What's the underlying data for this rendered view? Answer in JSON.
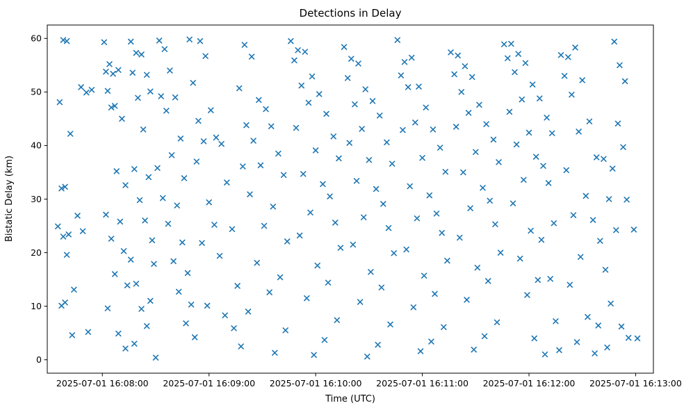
{
  "chart_data": {
    "type": "scatter",
    "marker": "x",
    "marker_color": "#1f77b4",
    "title": "Detections in Delay",
    "xlabel": "Time (UTC)",
    "ylabel": "Bistatic Delay (km)",
    "x_tick_labels": [
      "2025-07-01 16:08:00",
      "2025-07-01 16:09:00",
      "2025-07-01 16:10:00",
      "2025-07-01 16:11:00",
      "2025-07-01 16:12:00",
      "2025-07-01 16:13:00"
    ],
    "x_ticks_seconds": [
      0,
      60,
      120,
      180,
      240,
      300
    ],
    "xlim_seconds": [
      -31,
      310
    ],
    "ylim": [
      -2.5,
      62.5
    ],
    "y_ticks": [
      0,
      10,
      20,
      30,
      40,
      50,
      60
    ],
    "grid": false,
    "legend": "none",
    "points": [
      [
        -22,
        59.7
      ],
      [
        -20,
        59.5
      ],
      [
        -24,
        48.1
      ],
      [
        -18,
        42.2
      ],
      [
        -21,
        32.3
      ],
      [
        -23,
        32.0
      ],
      [
        -25,
        24.9
      ],
      [
        -19,
        23.4
      ],
      [
        -22,
        23.0
      ],
      [
        -20,
        19.6
      ],
      [
        -16,
        13.1
      ],
      [
        -21,
        10.7
      ],
      [
        -23,
        10.1
      ],
      [
        -17,
        4.6
      ],
      [
        -12,
        50.9
      ],
      [
        -9,
        49.9
      ],
      [
        -6,
        50.4
      ],
      [
        -14,
        26.9
      ],
      [
        -11,
        24.0
      ],
      [
        -8,
        5.2
      ],
      [
        1,
        59.3
      ],
      [
        4,
        55.2
      ],
      [
        2,
        53.8
      ],
      [
        6,
        53.4
      ],
      [
        9,
        54.1
      ],
      [
        3,
        50.2
      ],
      [
        7,
        47.4
      ],
      [
        5,
        47.1
      ],
      [
        11,
        45.0
      ],
      [
        8,
        35.2
      ],
      [
        13,
        32.6
      ],
      [
        2,
        27.1
      ],
      [
        10,
        25.8
      ],
      [
        5,
        22.6
      ],
      [
        12,
        20.3
      ],
      [
        7,
        16.0
      ],
      [
        14,
        13.9
      ],
      [
        3,
        9.6
      ],
      [
        9,
        4.9
      ],
      [
        13,
        2.1
      ],
      [
        16,
        59.4
      ],
      [
        19,
        57.3
      ],
      [
        22,
        57.0
      ],
      [
        17,
        53.6
      ],
      [
        25,
        53.2
      ],
      [
        20,
        48.9
      ],
      [
        27,
        50.1
      ],
      [
        23,
        43.0
      ],
      [
        18,
        35.6
      ],
      [
        26,
        34.1
      ],
      [
        21,
        29.8
      ],
      [
        24,
        26.0
      ],
      [
        28,
        22.3
      ],
      [
        16,
        18.7
      ],
      [
        29,
        17.9
      ],
      [
        19,
        14.2
      ],
      [
        27,
        11.0
      ],
      [
        22,
        9.5
      ],
      [
        25,
        6.3
      ],
      [
        18,
        3.0
      ],
      [
        30,
        0.4
      ],
      [
        32,
        59.6
      ],
      [
        35,
        58.0
      ],
      [
        38,
        54.0
      ],
      [
        33,
        49.2
      ],
      [
        41,
        49.0
      ],
      [
        36,
        46.5
      ],
      [
        44,
        41.3
      ],
      [
        39,
        38.2
      ],
      [
        31,
        35.8
      ],
      [
        46,
        33.9
      ],
      [
        34,
        30.2
      ],
      [
        42,
        28.8
      ],
      [
        37,
        25.4
      ],
      [
        45,
        21.9
      ],
      [
        40,
        18.4
      ],
      [
        48,
        16.2
      ],
      [
        43,
        12.7
      ],
      [
        50,
        10.3
      ],
      [
        47,
        6.8
      ],
      [
        52,
        4.2
      ],
      [
        49,
        59.8
      ],
      [
        55,
        59.5
      ],
      [
        58,
        56.7
      ],
      [
        51,
        51.7
      ],
      [
        61,
        46.6
      ],
      [
        54,
        44.6
      ],
      [
        64,
        41.5
      ],
      [
        57,
        40.8
      ],
      [
        67,
        40.3
      ],
      [
        53,
        37.0
      ],
      [
        70,
        33.1
      ],
      [
        60,
        29.4
      ],
      [
        63,
        25.2
      ],
      [
        73,
        24.4
      ],
      [
        56,
        21.8
      ],
      [
        66,
        19.4
      ],
      [
        76,
        13.8
      ],
      [
        59,
        10.1
      ],
      [
        69,
        8.3
      ],
      [
        74,
        5.9
      ],
      [
        78,
        2.5
      ],
      [
        80,
        58.8
      ],
      [
        84,
        56.6
      ],
      [
        77,
        50.7
      ],
      [
        88,
        48.5
      ],
      [
        92,
        46.8
      ],
      [
        81,
        43.8
      ],
      [
        95,
        43.6
      ],
      [
        85,
        40.9
      ],
      [
        99,
        38.5
      ],
      [
        79,
        36.1
      ],
      [
        89,
        36.3
      ],
      [
        102,
        34.5
      ],
      [
        83,
        30.9
      ],
      [
        96,
        28.6
      ],
      [
        91,
        25.0
      ],
      [
        104,
        22.1
      ],
      [
        87,
        18.1
      ],
      [
        100,
        15.4
      ],
      [
        94,
        12.6
      ],
      [
        82,
        9.0
      ],
      [
        103,
        5.5
      ],
      [
        97,
        1.3
      ],
      [
        106,
        59.5
      ],
      [
        110,
        57.8
      ],
      [
        114,
        57.5
      ],
      [
        108,
        55.9
      ],
      [
        118,
        52.9
      ],
      [
        112,
        51.2
      ],
      [
        122,
        49.6
      ],
      [
        116,
        48.0
      ],
      [
        126,
        45.9
      ],
      [
        109,
        43.3
      ],
      [
        130,
        41.7
      ],
      [
        120,
        39.1
      ],
      [
        133,
        37.6
      ],
      [
        113,
        34.7
      ],
      [
        124,
        32.8
      ],
      [
        128,
        30.5
      ],
      [
        117,
        27.5
      ],
      [
        131,
        25.6
      ],
      [
        111,
        23.2
      ],
      [
        134,
        20.9
      ],
      [
        121,
        17.6
      ],
      [
        127,
        14.4
      ],
      [
        115,
        11.5
      ],
      [
        132,
        7.4
      ],
      [
        125,
        3.7
      ],
      [
        119,
        0.9
      ],
      [
        136,
        58.4
      ],
      [
        140,
        56.2
      ],
      [
        144,
        55.3
      ],
      [
        138,
        52.6
      ],
      [
        148,
        50.5
      ],
      [
        152,
        48.3
      ],
      [
        142,
        47.7
      ],
      [
        156,
        45.6
      ],
      [
        146,
        43.1
      ],
      [
        160,
        40.6
      ],
      [
        139,
        40.5
      ],
      [
        150,
        37.3
      ],
      [
        163,
        36.6
      ],
      [
        143,
        33.4
      ],
      [
        154,
        31.9
      ],
      [
        158,
        29.1
      ],
      [
        147,
        26.6
      ],
      [
        161,
        24.6
      ],
      [
        141,
        21.5
      ],
      [
        164,
        19.9
      ],
      [
        151,
        16.4
      ],
      [
        157,
        13.5
      ],
      [
        145,
        10.8
      ],
      [
        162,
        6.6
      ],
      [
        155,
        2.8
      ],
      [
        149,
        0.6
      ],
      [
        166,
        59.7
      ],
      [
        170,
        55.6
      ],
      [
        174,
        56.4
      ],
      [
        168,
        53.1
      ],
      [
        178,
        51.0
      ],
      [
        172,
        50.9
      ],
      [
        182,
        47.1
      ],
      [
        176,
        44.3
      ],
      [
        186,
        43.0
      ],
      [
        169,
        42.9
      ],
      [
        190,
        39.6
      ],
      [
        180,
        37.7
      ],
      [
        193,
        35.1
      ],
      [
        173,
        32.4
      ],
      [
        184,
        30.7
      ],
      [
        188,
        27.3
      ],
      [
        177,
        26.4
      ],
      [
        191,
        23.7
      ],
      [
        171,
        20.6
      ],
      [
        194,
        18.5
      ],
      [
        181,
        15.7
      ],
      [
        187,
        12.3
      ],
      [
        175,
        9.8
      ],
      [
        192,
        6.1
      ],
      [
        185,
        3.4
      ],
      [
        179,
        1.6
      ],
      [
        196,
        57.4
      ],
      [
        200,
        56.8
      ],
      [
        204,
        54.8
      ],
      [
        198,
        53.3
      ],
      [
        208,
        52.8
      ],
      [
        202,
        50.0
      ],
      [
        212,
        47.6
      ],
      [
        206,
        46.1
      ],
      [
        216,
        44.0
      ],
      [
        199,
        43.5
      ],
      [
        220,
        41.1
      ],
      [
        210,
        38.8
      ],
      [
        223,
        36.9
      ],
      [
        203,
        35.0
      ],
      [
        214,
        32.1
      ],
      [
        218,
        29.7
      ],
      [
        207,
        28.3
      ],
      [
        221,
        25.3
      ],
      [
        201,
        22.8
      ],
      [
        224,
        20.0
      ],
      [
        211,
        17.2
      ],
      [
        217,
        14.7
      ],
      [
        205,
        11.2
      ],
      [
        222,
        7.0
      ],
      [
        215,
        4.4
      ],
      [
        209,
        1.9
      ],
      [
        226,
        58.9
      ],
      [
        230,
        59.0
      ],
      [
        234,
        57.1
      ],
      [
        228,
        56.3
      ],
      [
        238,
        55.4
      ],
      [
        232,
        53.7
      ],
      [
        242,
        51.4
      ],
      [
        236,
        48.6
      ],
      [
        246,
        48.8
      ],
      [
        229,
        46.3
      ],
      [
        250,
        45.2
      ],
      [
        240,
        42.4
      ],
      [
        253,
        42.3
      ],
      [
        233,
        40.2
      ],
      [
        244,
        37.9
      ],
      [
        248,
        36.2
      ],
      [
        237,
        33.6
      ],
      [
        251,
        33.0
      ],
      [
        231,
        29.2
      ],
      [
        254,
        25.5
      ],
      [
        241,
        24.1
      ],
      [
        247,
        22.4
      ],
      [
        235,
        18.9
      ],
      [
        252,
        15.1
      ],
      [
        245,
        14.9
      ],
      [
        239,
        12.1
      ],
      [
        255,
        7.2
      ],
      [
        243,
        4.0
      ],
      [
        257,
        1.8
      ],
      [
        249,
        1.0
      ],
      [
        258,
        56.9
      ],
      [
        262,
        56.5
      ],
      [
        266,
        58.3
      ],
      [
        260,
        53.0
      ],
      [
        270,
        52.2
      ],
      [
        264,
        49.5
      ],
      [
        274,
        44.5
      ],
      [
        268,
        42.6
      ],
      [
        278,
        37.8
      ],
      [
        261,
        35.4
      ],
      [
        282,
        37.5
      ],
      [
        272,
        30.6
      ],
      [
        285,
        30.0
      ],
      [
        265,
        27.0
      ],
      [
        276,
        26.1
      ],
      [
        280,
        22.2
      ],
      [
        269,
        19.2
      ],
      [
        283,
        16.8
      ],
      [
        263,
        14.0
      ],
      [
        286,
        10.5
      ],
      [
        273,
        8.0
      ],
      [
        279,
        6.4
      ],
      [
        267,
        3.3
      ],
      [
        284,
        2.3
      ],
      [
        277,
        1.2
      ],
      [
        288,
        59.4
      ],
      [
        291,
        55.0
      ],
      [
        294,
        52.0
      ],
      [
        290,
        44.1
      ],
      [
        293,
        39.7
      ],
      [
        287,
        35.7
      ],
      [
        295,
        29.9
      ],
      [
        289,
        24.2
      ],
      [
        292,
        6.2
      ],
      [
        296,
        4.1
      ],
      [
        299,
        24.3
      ],
      [
        301,
        4.0
      ]
    ]
  }
}
